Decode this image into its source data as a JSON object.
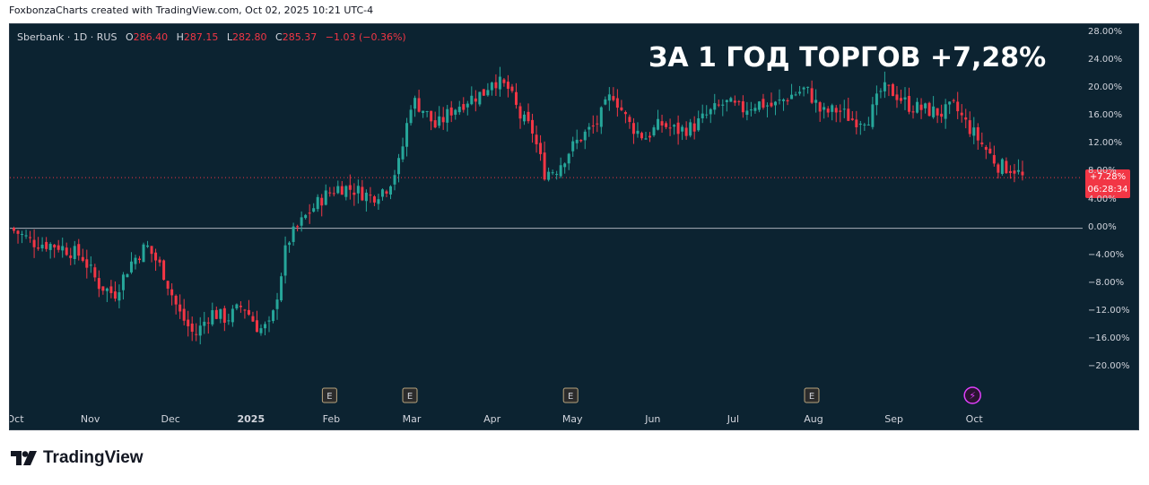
{
  "header": {
    "attribution": "FoxbonzaCharts created with TradingView.com, Oct 02, 2025 10:21 UTC-4"
  },
  "legend": {
    "symbol": "Sberbank · 1D · RUS",
    "o_label": "O",
    "o": "286.40",
    "h_label": "H",
    "h": "287.15",
    "l_label": "L",
    "l": "282.80",
    "c_label": "C",
    "c": "285.37",
    "change": "−1.03 (−0.36%)"
  },
  "headline": "ЗА 1 ГОД ТОРГОВ +7,28%",
  "last_price_label": {
    "value": "+7.28%",
    "countdown": "06:28:34"
  },
  "footer": {
    "brand": "TradingView"
  },
  "colors": {
    "up": "#26a69a",
    "down": "#f23645",
    "background": "#0c2331",
    "axis_text": "#d1d4dc"
  },
  "chart_data": {
    "type": "candlestick",
    "y_unit": "% change",
    "ylim": [
      -22,
      28
    ],
    "y_ticks": [
      28,
      24,
      20,
      16,
      12,
      8,
      4,
      0,
      -4,
      -8,
      -12,
      -16,
      -20
    ],
    "y_tick_labels": [
      "28.00%",
      "24.00%",
      "20.00%",
      "16.00%",
      "12.00%",
      "8.00%",
      "4.00%",
      "0.00%",
      "−4.00%",
      "−8.00%",
      "−12.00%",
      "−16.00%",
      "−20.00%"
    ],
    "x_tick_labels": [
      "Oct",
      "Nov",
      "Dec",
      "2025",
      "Feb",
      "Mar",
      "Apr",
      "May",
      "Jun",
      "Jul",
      "Aug",
      "Sep",
      "Oct"
    ],
    "x_tick_months": [
      0,
      1,
      2,
      3,
      4,
      5,
      6,
      7,
      8,
      9,
      10,
      11,
      12
    ],
    "zero_line": 0,
    "last_value": 7.28,
    "events": [
      {
        "month": 4.0,
        "label": "E"
      },
      {
        "month": 5.0,
        "label": "E"
      },
      {
        "month": 7.0,
        "label": "E"
      },
      {
        "month": 10.0,
        "label": "E"
      },
      {
        "month": 12.0,
        "label": "⚡"
      }
    ],
    "close_path": [
      [
        0.0,
        0
      ],
      [
        0.3,
        -2
      ],
      [
        0.6,
        -2.5
      ],
      [
        0.9,
        -4
      ],
      [
        1.1,
        -8
      ],
      [
        1.3,
        -9.5
      ],
      [
        1.5,
        -5
      ],
      [
        1.7,
        -2.5
      ],
      [
        1.9,
        -6
      ],
      [
        2.1,
        -12
      ],
      [
        2.3,
        -15.5
      ],
      [
        2.5,
        -12
      ],
      [
        2.7,
        -13
      ],
      [
        2.9,
        -11
      ],
      [
        3.1,
        -14.5
      ],
      [
        3.25,
        -14
      ],
      [
        3.45,
        -2
      ],
      [
        3.7,
        2
      ],
      [
        3.9,
        4.5
      ],
      [
        4.1,
        6
      ],
      [
        4.3,
        5.5
      ],
      [
        4.5,
        4.5
      ],
      [
        4.7,
        6
      ],
      [
        4.85,
        9.5
      ],
      [
        5.0,
        18.5
      ],
      [
        5.15,
        17
      ],
      [
        5.3,
        14.5
      ],
      [
        5.5,
        17
      ],
      [
        5.7,
        18.5
      ],
      [
        5.9,
        19.5
      ],
      [
        6.0,
        21.5
      ],
      [
        6.2,
        20
      ],
      [
        6.35,
        16
      ],
      [
        6.5,
        14
      ],
      [
        6.65,
        8
      ],
      [
        6.8,
        8.5
      ],
      [
        6.95,
        11
      ],
      [
        7.1,
        13
      ],
      [
        7.3,
        15
      ],
      [
        7.5,
        19.5
      ],
      [
        7.7,
        15
      ],
      [
        7.9,
        13
      ],
      [
        8.1,
        15
      ],
      [
        8.3,
        14
      ],
      [
        8.5,
        14.5
      ],
      [
        8.7,
        16.5
      ],
      [
        8.9,
        18
      ],
      [
        9.1,
        17
      ],
      [
        9.3,
        18
      ],
      [
        9.5,
        17.5
      ],
      [
        9.7,
        19
      ],
      [
        9.9,
        20
      ],
      [
        10.0,
        18.5
      ],
      [
        10.1,
        16.5
      ],
      [
        10.3,
        17
      ],
      [
        10.5,
        15.5
      ],
      [
        10.7,
        16
      ],
      [
        10.85,
        20
      ],
      [
        11.0,
        19.5
      ],
      [
        11.2,
        17.5
      ],
      [
        11.4,
        17
      ],
      [
        11.6,
        16.5
      ],
      [
        11.75,
        17.5
      ],
      [
        11.9,
        15
      ],
      [
        12.1,
        12
      ],
      [
        12.3,
        9
      ],
      [
        12.5,
        8.5
      ],
      [
        12.6,
        7.28
      ]
    ]
  }
}
